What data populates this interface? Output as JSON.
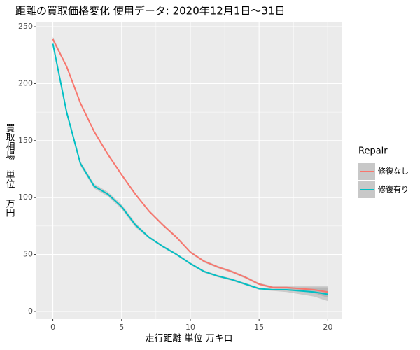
{
  "chart_data": {
    "type": "line",
    "title": "距離の買取価格変化 使用データ: 2020年12月1日～31日",
    "x_label": "走行距離 単位 万キロ",
    "y_label": "買取相場 単位 万円",
    "legend_title": "Repair",
    "x": [
      0,
      1,
      2,
      3,
      4,
      5,
      6,
      7,
      8,
      9,
      10,
      11,
      12,
      13,
      14,
      15,
      16,
      17,
      18,
      19,
      20
    ],
    "series": [
      {
        "name": "修復なし",
        "color": "#F8766D",
        "values": [
          239,
          215,
          183,
          158,
          138,
          120,
          103,
          88,
          76,
          65,
          52,
          44,
          39,
          35,
          30,
          24,
          21,
          21,
          20,
          19,
          17
        ],
        "lower": [
          237,
          214,
          182,
          157,
          137,
          119,
          102,
          87,
          75,
          64,
          51,
          43,
          38,
          34,
          29,
          23,
          20,
          20,
          18,
          16,
          12
        ],
        "upper": [
          241,
          216,
          184,
          159,
          139,
          121,
          104,
          89,
          77,
          66,
          53,
          45,
          40,
          36,
          31,
          25,
          22,
          22,
          22,
          22,
          22
        ]
      },
      {
        "name": "修復有り",
        "color": "#00BFC4",
        "values": [
          235,
          175,
          130,
          110,
          103,
          92,
          76,
          65,
          57,
          50,
          42,
          35,
          31,
          28,
          24,
          20,
          19,
          19,
          18,
          17,
          15
        ],
        "lower": [
          233,
          173,
          128,
          108,
          101,
          90,
          74,
          64,
          56,
          49,
          41,
          34,
          30,
          27,
          23,
          19,
          18,
          17,
          15,
          13,
          9
        ],
        "upper": [
          237,
          177,
          132,
          112,
          105,
          94,
          78,
          66,
          58,
          51,
          43,
          36,
          32,
          29,
          25,
          21,
          20,
          21,
          21,
          21,
          21
        ]
      }
    ],
    "xlim": [
      -1.2,
      21
    ],
    "ylim": [
      -6.8,
      253.7
    ],
    "xticks": [
      0,
      5,
      10,
      15,
      20
    ],
    "yticks": [
      0,
      50,
      100,
      150,
      200,
      250
    ],
    "grid": true
  }
}
